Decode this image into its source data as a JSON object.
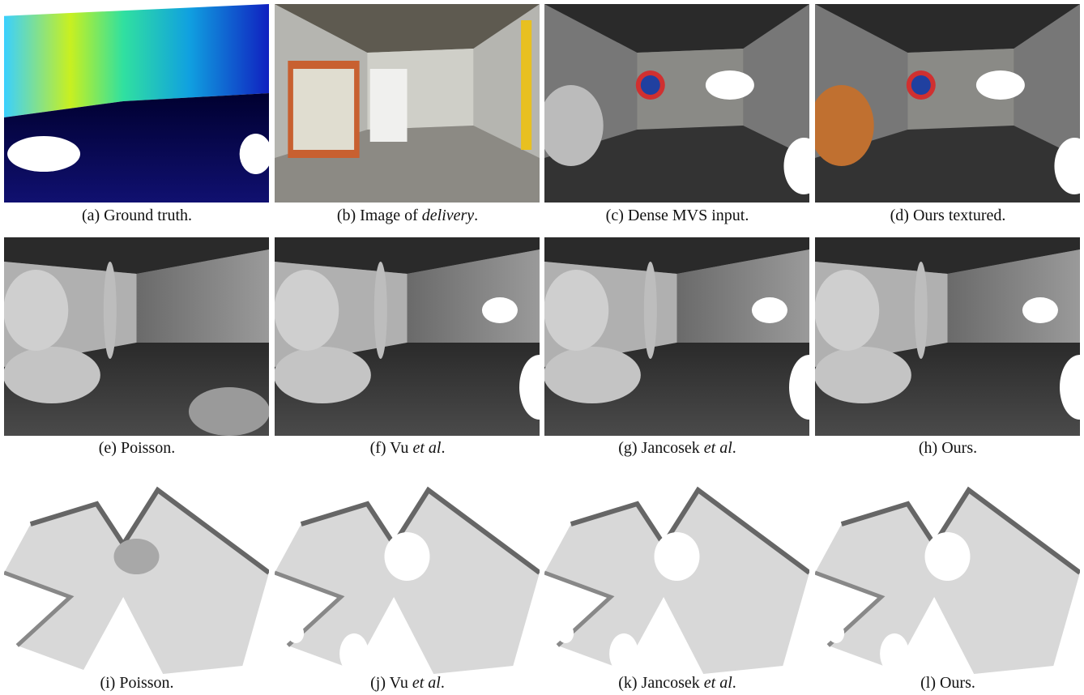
{
  "panels": [
    {
      "caption": {
        "text": "(a) Ground truth."
      }
    },
    {
      "caption": {
        "text": "(b) Image of ",
        "em": "delivery",
        "tail": "."
      }
    },
    {
      "caption": {
        "text": "(c) Dense MVS input."
      }
    },
    {
      "caption": {
        "text": "(d) Ours textured."
      }
    },
    {
      "caption": {
        "text": "(e) Poisson."
      }
    },
    {
      "caption": {
        "text": "(f) Vu ",
        "em": "et al",
        "tail": "."
      }
    },
    {
      "caption": {
        "text": "(g) Jancosek ",
        "em": "et al",
        "tail": "."
      }
    },
    {
      "caption": {
        "text": "(h) Ours."
      }
    },
    {
      "caption": {
        "text": "(i) Poisson."
      }
    },
    {
      "caption": {
        "text": "(j) Vu ",
        "em": "et al",
        "tail": "."
      }
    },
    {
      "caption": {
        "text": "(k) Jancosek ",
        "em": "et al",
        "tail": "."
      }
    },
    {
      "caption": {
        "text": "(l) Ours."
      }
    }
  ]
}
